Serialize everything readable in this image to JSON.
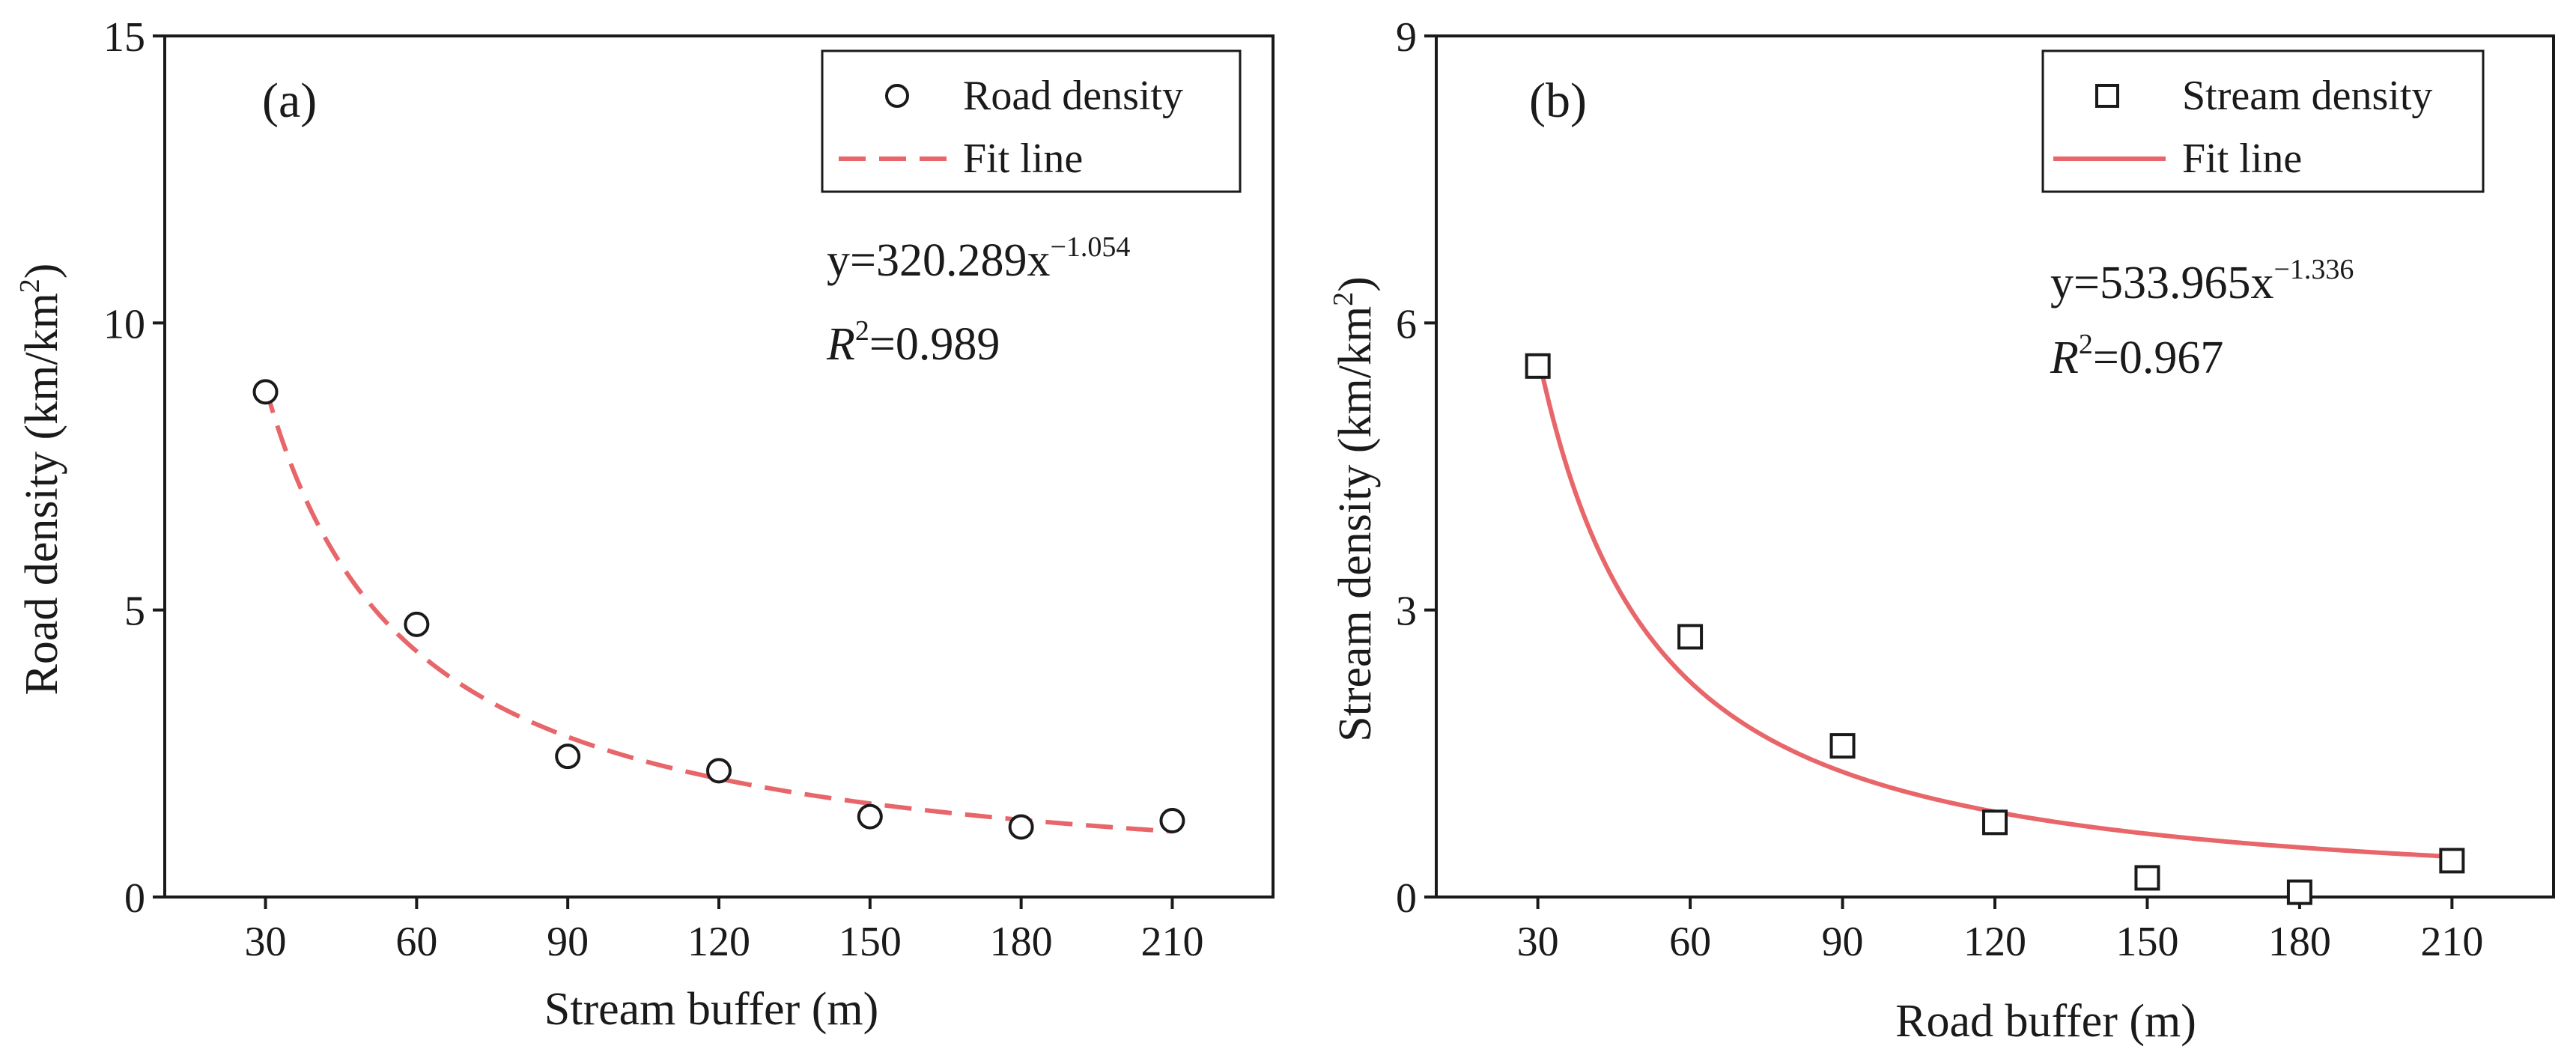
{
  "chart_data": [
    {
      "type": "scatter",
      "panel_label": "(a)",
      "xlabel": "Stream buffer (m)",
      "ylabel_text": "Road density (km/km",
      "ylabel_sup": "2",
      "ylabel_close": ")",
      "xlim": [
        10,
        230
      ],
      "ylim": [
        0,
        15
      ],
      "x_ticks": [
        30,
        60,
        90,
        120,
        150,
        180,
        210
      ],
      "y_ticks": [
        0,
        5,
        10,
        15
      ],
      "x_tick_labels": [
        "30",
        "60",
        "90",
        "120",
        "150",
        "180",
        "210"
      ],
      "y_tick_labels": [
        "0",
        "5",
        "10",
        "15"
      ],
      "series": [
        {
          "name": "Road density",
          "marker": "circle",
          "x": [
            30,
            60,
            90,
            120,
            150,
            180,
            210
          ],
          "y": [
            8.8,
            4.75,
            2.45,
            2.2,
            1.4,
            1.22,
            1.33
          ]
        }
      ],
      "fit": {
        "name": "Fit line",
        "style": "dashed",
        "color": "#e8666a",
        "a": 320.289,
        "b": -1.054,
        "x_range": [
          30,
          210
        ]
      },
      "equation": {
        "prefix": "y=320.289x",
        "exponent": "−1.054",
        "r_symbol": "R",
        "r_sup": "2",
        "r_value": "=0.989"
      },
      "legend": [
        {
          "label": "Road density",
          "kind": "circle"
        },
        {
          "label": "Fit line",
          "kind": "dashed"
        }
      ],
      "legend_position": "top-right"
    },
    {
      "type": "scatter",
      "panel_label": "(b)",
      "xlabel": "Road buffer (m)",
      "ylabel_text": "Stream density (km/km",
      "ylabel_sup": "2",
      "ylabel_close": ")",
      "xlim": [
        10,
        230
      ],
      "ylim": [
        0,
        9
      ],
      "x_ticks": [
        30,
        60,
        90,
        120,
        150,
        180,
        210
      ],
      "y_ticks": [
        0,
        3,
        6,
        9
      ],
      "x_tick_labels": [
        "30",
        "60",
        "90",
        "120",
        "150",
        "180",
        "210"
      ],
      "y_tick_labels": [
        "0",
        "3",
        "6",
        "9"
      ],
      "series": [
        {
          "name": "Stream density",
          "marker": "square",
          "x": [
            30,
            60,
            90,
            120,
            150,
            180,
            210
          ],
          "y": [
            5.55,
            2.72,
            1.58,
            0.78,
            0.2,
            0.05,
            0.38
          ]
        }
      ],
      "fit": {
        "name": "Fit line",
        "style": "solid",
        "color": "#e8666a",
        "a": 533.965,
        "b": -1.336,
        "x_range": [
          30,
          210
        ]
      },
      "equation": {
        "prefix": "y=533.965x",
        "exponent": "−1.336",
        "r_symbol": "R",
        "r_sup": "2",
        "r_value": "=0.967"
      },
      "legend": [
        {
          "label": "Stream density",
          "kind": "square"
        },
        {
          "label": "Fit line",
          "kind": "solid"
        }
      ],
      "legend_position": "top-right"
    }
  ]
}
